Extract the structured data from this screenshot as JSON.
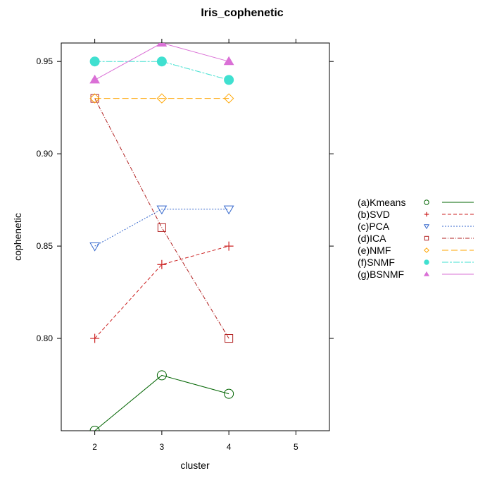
{
  "chart_data": {
    "type": "line",
    "title": "Iris_cophenetic",
    "xlabel": "cluster",
    "ylabel": "cophenetic",
    "xlim": [
      1.5,
      5.5
    ],
    "ylim": [
      0.75,
      0.96
    ],
    "xticks": [
      "2",
      "3",
      "4",
      "5"
    ],
    "yticks": [
      "0.80",
      "0.85",
      "0.90",
      "0.95"
    ],
    "grid": false,
    "legend_position": "right",
    "x": [
      2,
      3,
      4
    ],
    "series": [
      {
        "name": "(a)Kmeans",
        "values": [
          0.75,
          0.78,
          0.77
        ],
        "color": "#006400",
        "marker": "circle-open",
        "line": "solid"
      },
      {
        "name": "(b)SVD",
        "values": [
          0.8,
          0.84,
          0.85
        ],
        "color": "#cc2222",
        "marker": "plus",
        "line": "dashed"
      },
      {
        "name": "(c)PCA",
        "values": [
          0.85,
          0.87,
          0.87
        ],
        "color": "#3366cc",
        "marker": "triangle-down-open",
        "line": "dotted"
      },
      {
        "name": "(d)ICA",
        "values": [
          0.93,
          0.86,
          0.8
        ],
        "color": "#b22222",
        "marker": "square-open",
        "line": "dotdash"
      },
      {
        "name": "(e)NMF",
        "values": [
          0.93,
          0.93,
          0.93
        ],
        "color": "#ffa500",
        "marker": "diamond-open",
        "line": "longdash"
      },
      {
        "name": "(f)SNMF",
        "values": [
          0.95,
          0.95,
          0.94
        ],
        "color": "#40e0d0",
        "marker": "circle-filled",
        "line": "twodash"
      },
      {
        "name": "(g)BSNMF",
        "values": [
          0.94,
          0.96,
          0.95
        ],
        "color": "#da70d6",
        "marker": "triangle-up-filled",
        "line": "solid"
      }
    ]
  }
}
